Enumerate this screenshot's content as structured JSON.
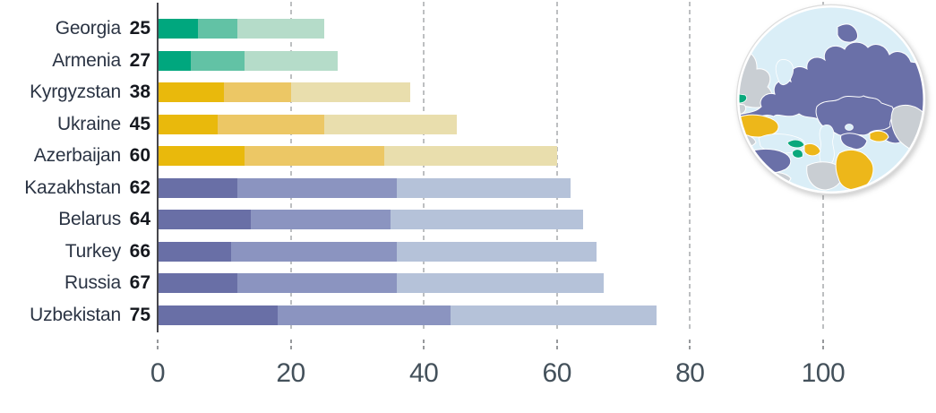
{
  "chart_data": {
    "type": "bar",
    "variant": "horizontal-stacked",
    "title": "",
    "xlabel": "",
    "ylabel": "",
    "categories": [
      "Georgia",
      "Armenia",
      "Kyrgyzstan",
      "Ukraine",
      "Azerbaijan",
      "Kazakhstan",
      "Belarus",
      "Turkey",
      "Russia",
      "Uzbekistan"
    ],
    "totals": [
      25,
      27,
      38,
      45,
      60,
      62,
      64,
      66,
      67,
      75
    ],
    "series": [
      {
        "name": "shade-dark",
        "values": [
          6,
          5,
          10,
          9,
          13,
          12,
          14,
          11,
          12,
          18
        ]
      },
      {
        "name": "shade-medium",
        "values": [
          6,
          8,
          10,
          16,
          21,
          24,
          21,
          25,
          24,
          26
        ]
      },
      {
        "name": "shade-light",
        "values": [
          13,
          14,
          18,
          20,
          26,
          26,
          29,
          30,
          31,
          31
        ]
      }
    ],
    "category_palettes": [
      "green",
      "green",
      "amber",
      "amber",
      "amber",
      "violet",
      "violet",
      "violet",
      "violet",
      "violet"
    ],
    "palettes": {
      "green": [
        "#00a77e",
        "#62c2a5",
        "#b5dcc9"
      ],
      "amber": [
        "#e9b90c",
        "#ecc765",
        "#e9dead"
      ],
      "violet": [
        "#696fa6",
        "#8b94c0",
        "#b5c2d9"
      ]
    },
    "x_ticks": [
      0,
      20,
      40,
      60,
      80,
      100
    ],
    "xlim": [
      0,
      117
    ],
    "grid": "dashed-vertical",
    "legend": "none"
  },
  "map_inset": {
    "shape": "circle",
    "region": "Eurasia",
    "colors": {
      "water": "#daeef7",
      "other_land": "#c9ced3",
      "high_violet": "#6a70a8",
      "mid_yellow": "#edb71a",
      "low_green": "#0aa87c",
      "border": "#ffffff"
    }
  }
}
